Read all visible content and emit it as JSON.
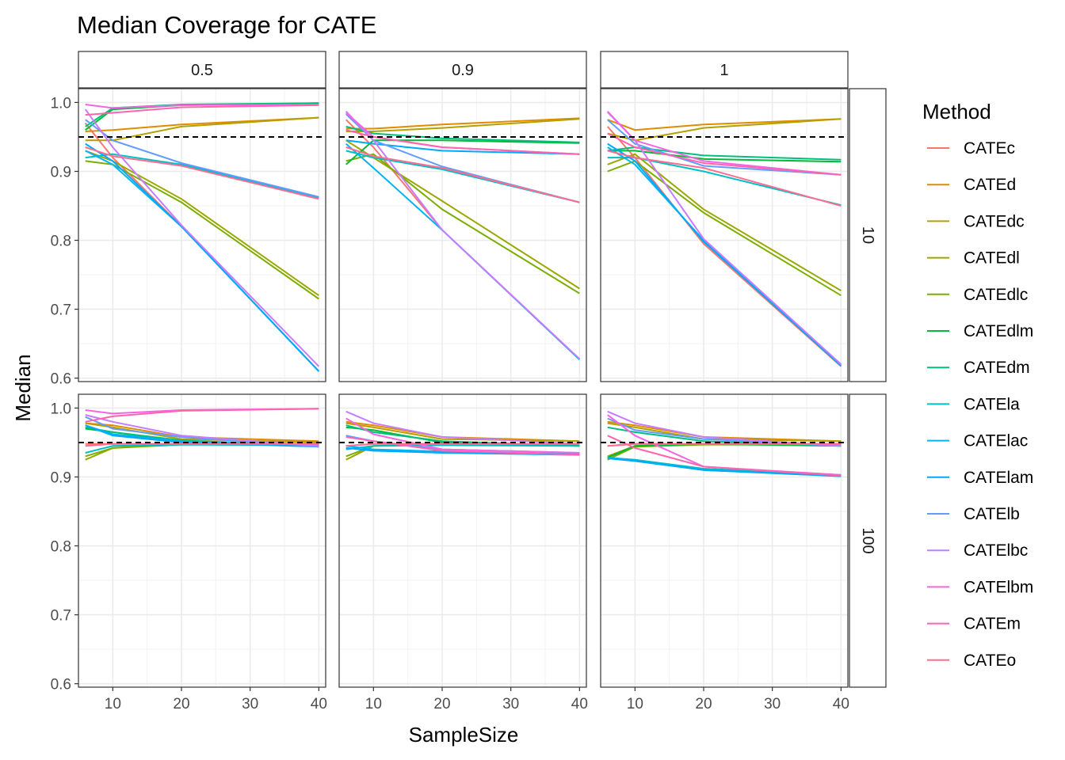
{
  "chart_data": {
    "type": "line",
    "title": "Median Coverage for CATE",
    "xlabel": "SampleSize",
    "ylabel": "Median",
    "x": [
      6,
      10,
      20,
      40
    ],
    "xlim": [
      5,
      41
    ],
    "ylim": [
      0.595,
      1.02
    ],
    "xticks": [
      10,
      20,
      30,
      40
    ],
    "yticks": [
      0.6,
      0.7,
      0.8,
      0.9,
      1.0
    ],
    "ytick_labels": [
      "0.6",
      "0.7",
      "0.8",
      "0.9",
      "1.0"
    ],
    "reference_line": 0.95,
    "grid": true,
    "legend_position": "right",
    "legend_title": "Method",
    "methods": [
      {
        "name": "CATEc",
        "color": "#F8766D"
      },
      {
        "name": "CATEd",
        "color": "#DE8C00"
      },
      {
        "name": "CATEdc",
        "color": "#B79F00"
      },
      {
        "name": "CATEdl",
        "color": "#9CA700"
      },
      {
        "name": "CATEdlc",
        "color": "#7CAE00"
      },
      {
        "name": "CATEdlm",
        "color": "#00BA38"
      },
      {
        "name": "CATEdm",
        "color": "#00BF7D"
      },
      {
        "name": "CATEla",
        "color": "#00BFC4"
      },
      {
        "name": "CATElac",
        "color": "#00B4F0"
      },
      {
        "name": "CATElam",
        "color": "#00A9FF"
      },
      {
        "name": "CATElb",
        "color": "#619CFF"
      },
      {
        "name": "CATElbc",
        "color": "#C77CFF"
      },
      {
        "name": "CATElbm",
        "color": "#F564E3"
      },
      {
        "name": "CATEm",
        "color": "#FF64B0"
      },
      {
        "name": "CATEo",
        "color": "#FF6C91"
      }
    ],
    "col_strips": [
      "0.5",
      "0.9",
      "1"
    ],
    "row_strips": [
      "10",
      "100"
    ],
    "panels": [
      {
        "col": 0,
        "row": 0,
        "series": {
          "CATEc": [
            0.97,
            0.92,
            0.82,
            0.61
          ],
          "CATEd": [
            0.958,
            0.96,
            0.968,
            0.978
          ],
          "CATEdc": [
            0.945,
            0.945,
            0.965,
            0.978
          ],
          "CATEdl": [
            0.93,
            0.915,
            0.86,
            0.72
          ],
          "CATEdlc": [
            0.915,
            0.91,
            0.855,
            0.715
          ],
          "CATEdlm": [
            0.96,
            0.99,
            0.996,
            0.999
          ],
          "CATEdm": [
            0.965,
            0.992,
            0.997,
            0.999
          ],
          "CATEla": [
            0.92,
            0.925,
            0.91,
            0.862
          ],
          "CATElac": [
            0.93,
            0.91,
            0.82,
            0.61
          ],
          "CATElam": [
            0.94,
            0.915,
            0.82,
            0.61
          ],
          "CATElb": [
            0.975,
            0.945,
            0.912,
            0.863
          ],
          "CATElbc": [
            0.99,
            0.935,
            0.822,
            0.617
          ],
          "CATElbm": [
            0.997,
            0.992,
            0.996,
            0.997
          ],
          "CATEm": [
            0.982,
            0.985,
            0.993,
            0.996
          ],
          "CATEo": [
            0.935,
            0.922,
            0.908,
            0.86
          ]
        }
      },
      {
        "col": 1,
        "row": 0,
        "series": {
          "CATEc": [
            0.975,
            0.935,
            0.815,
            0.627
          ],
          "CATEd": [
            0.962,
            0.962,
            0.968,
            0.977
          ],
          "CATEdc": [
            0.958,
            0.958,
            0.963,
            0.976
          ],
          "CATEdl": [
            0.945,
            0.92,
            0.857,
            0.73
          ],
          "CATEdlc": [
            0.915,
            0.925,
            0.845,
            0.723
          ],
          "CATEdlm": [
            0.91,
            0.945,
            0.945,
            0.941
          ],
          "CATEdm": [
            0.965,
            0.955,
            0.948,
            0.942
          ],
          "CATEla": [
            0.93,
            0.92,
            0.903,
            0.855
          ],
          "CATElac": [
            0.94,
            0.905,
            0.815,
            0.627
          ],
          "CATElam": [
            0.945,
            0.94,
            0.93,
            0.925
          ],
          "CATElb": [
            0.983,
            0.945,
            0.907,
            0.855
          ],
          "CATElbc": [
            0.987,
            0.945,
            0.815,
            0.628
          ],
          "CATElbm": [
            0.985,
            0.95,
            0.935,
            0.925
          ],
          "CATEm": [
            0.96,
            0.95,
            0.935,
            0.925
          ],
          "CATEo": [
            0.935,
            0.922,
            0.905,
            0.855
          ]
        }
      },
      {
        "col": 2,
        "row": 0,
        "series": {
          "CATEc": [
            0.965,
            0.92,
            0.795,
            0.617
          ],
          "CATEd": [
            0.975,
            0.96,
            0.968,
            0.976
          ],
          "CATEdc": [
            0.955,
            0.945,
            0.963,
            0.976
          ],
          "CATEdl": [
            0.91,
            0.925,
            0.845,
            0.727
          ],
          "CATEdlc": [
            0.9,
            0.915,
            0.84,
            0.72
          ],
          "CATEdlm": [
            0.93,
            0.93,
            0.918,
            0.914
          ],
          "CATEdm": [
            0.93,
            0.935,
            0.923,
            0.917
          ],
          "CATEla": [
            0.92,
            0.92,
            0.9,
            0.851
          ],
          "CATElac": [
            0.935,
            0.91,
            0.8,
            0.62
          ],
          "CATElam": [
            0.94,
            0.915,
            0.798,
            0.618
          ],
          "CATElb": [
            0.975,
            0.94,
            0.908,
            0.895
          ],
          "CATElbc": [
            0.986,
            0.945,
            0.802,
            0.62
          ],
          "CATElbm": [
            0.987,
            0.945,
            0.915,
            0.895
          ],
          "CATEm": [
            0.955,
            0.935,
            0.912,
            0.895
          ],
          "CATEo": [
            0.93,
            0.92,
            0.905,
            0.85
          ]
        }
      },
      {
        "col": 0,
        "row": 1,
        "series": {
          "CATEc": [
            0.948,
            0.948,
            0.948,
            0.948
          ],
          "CATEd": [
            0.978,
            0.975,
            0.958,
            0.952
          ],
          "CATEdc": [
            0.978,
            0.972,
            0.955,
            0.95
          ],
          "CATEdl": [
            0.925,
            0.942,
            0.948,
            0.948
          ],
          "CATEdlc": [
            0.93,
            0.942,
            0.947,
            0.947
          ],
          "CATEdlm": [
            0.97,
            0.965,
            0.952,
            0.945
          ],
          "CATEdm": [
            0.972,
            0.965,
            0.953,
            0.945
          ],
          "CATEla": [
            0.935,
            0.945,
            0.947,
            0.946
          ],
          "CATElac": [
            0.975,
            0.962,
            0.952,
            0.945
          ],
          "CATElam": [
            0.975,
            0.96,
            0.95,
            0.944
          ],
          "CATElb": [
            0.987,
            0.97,
            0.958,
            0.944
          ],
          "CATElbc": [
            0.99,
            0.98,
            0.96,
            0.945
          ],
          "CATElbm": [
            0.997,
            0.992,
            0.997,
            0.999
          ],
          "CATEm": [
            0.98,
            0.988,
            0.996,
            0.999
          ],
          "CATEo": [
            0.945,
            0.948,
            0.948,
            0.948
          ]
        }
      },
      {
        "col": 1,
        "row": 1,
        "series": {
          "CATEc": [
            0.945,
            0.948,
            0.948,
            0.948
          ],
          "CATEd": [
            0.98,
            0.975,
            0.958,
            0.952
          ],
          "CATEdc": [
            0.978,
            0.972,
            0.955,
            0.952
          ],
          "CATEdl": [
            0.925,
            0.945,
            0.948,
            0.948
          ],
          "CATEdlc": [
            0.93,
            0.945,
            0.947,
            0.947
          ],
          "CATEdlm": [
            0.972,
            0.968,
            0.95,
            0.945
          ],
          "CATEdm": [
            0.975,
            0.965,
            0.952,
            0.945
          ],
          "CATEla": [
            0.94,
            0.945,
            0.946,
            0.945
          ],
          "CATElac": [
            0.945,
            0.94,
            0.937,
            0.933
          ],
          "CATElam": [
            0.942,
            0.938,
            0.935,
            0.932
          ],
          "CATElb": [
            0.96,
            0.952,
            0.94,
            0.935
          ],
          "CATElbc": [
            0.995,
            0.978,
            0.958,
            0.948
          ],
          "CATElbm": [
            0.985,
            0.962,
            0.94,
            0.935
          ],
          "CATEm": [
            0.958,
            0.952,
            0.938,
            0.932
          ],
          "CATEo": [
            0.945,
            0.948,
            0.948,
            0.948
          ]
        }
      },
      {
        "col": 2,
        "row": 1,
        "series": {
          "CATEc": [
            0.945,
            0.948,
            0.948,
            0.948
          ],
          "CATEd": [
            0.98,
            0.975,
            0.958,
            0.952
          ],
          "CATEdc": [
            0.978,
            0.972,
            0.955,
            0.952
          ],
          "CATEdl": [
            0.93,
            0.945,
            0.948,
            0.948
          ],
          "CATEdlc": [
            0.925,
            0.944,
            0.947,
            0.947
          ],
          "CATEdlm": [
            0.928,
            0.945,
            0.948,
            0.945
          ],
          "CATEdm": [
            0.972,
            0.965,
            0.952,
            0.945
          ],
          "CATEla": [
            0.928,
            0.925,
            0.912,
            0.903
          ],
          "CATElac": [
            0.928,
            0.924,
            0.91,
            0.902
          ],
          "CATElam": [
            0.927,
            0.923,
            0.91,
            0.901
          ],
          "CATElb": [
            0.985,
            0.968,
            0.955,
            0.945
          ],
          "CATElbc": [
            0.995,
            0.978,
            0.958,
            0.945
          ],
          "CATElbm": [
            0.99,
            0.96,
            0.915,
            0.903
          ],
          "CATEm": [
            0.96,
            0.942,
            0.915,
            0.902
          ],
          "CATEo": [
            0.945,
            0.948,
            0.948,
            0.948
          ]
        }
      }
    ]
  }
}
